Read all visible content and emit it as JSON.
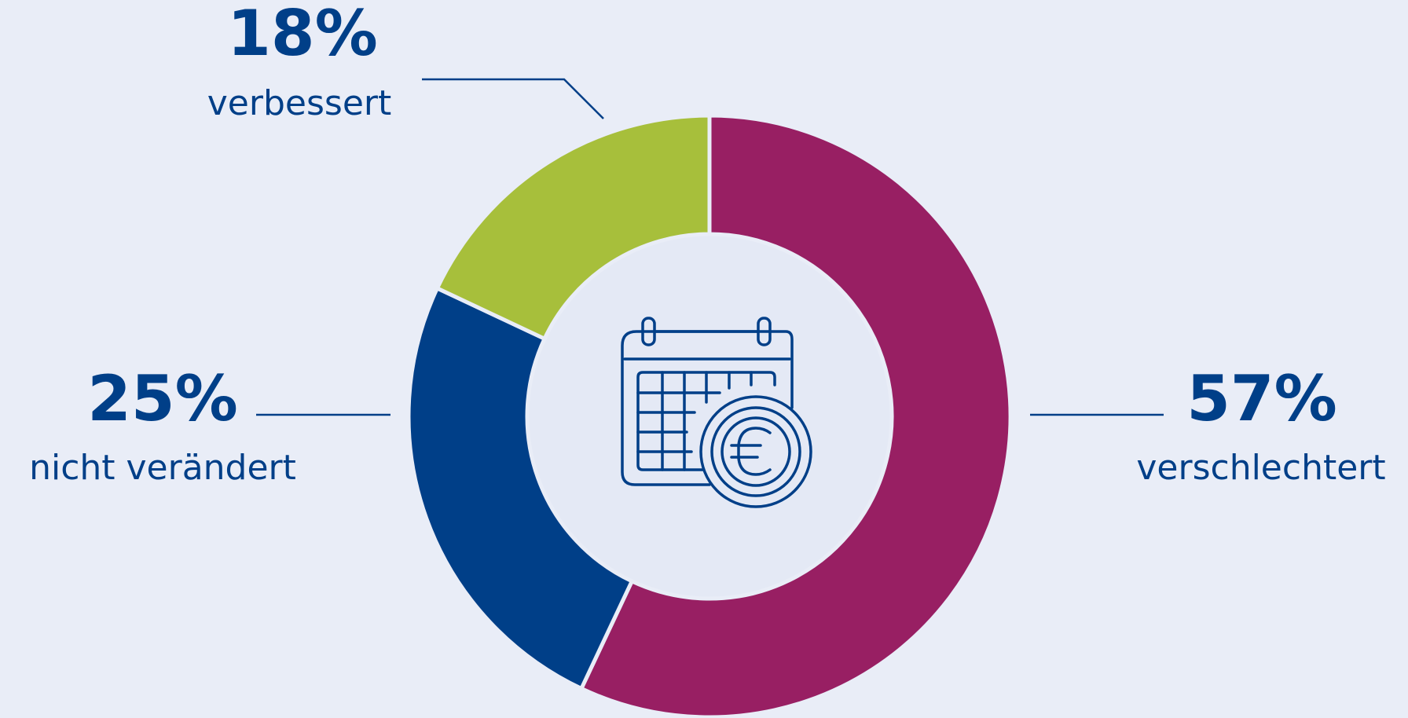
{
  "chart_data": {
    "type": "pie",
    "subtype": "donut",
    "unit": "%",
    "slices": [
      {
        "label": "verschlechtert",
        "value": 57,
        "value_label": "57%",
        "color": "#981f63"
      },
      {
        "label": "nicht verändert",
        "value": 25,
        "value_label": "25%",
        "color": "#003f88"
      },
      {
        "label": "verbessert",
        "value": 18,
        "value_label": "18%",
        "color": "#a7bf3b"
      }
    ],
    "start_angle_deg": 0,
    "direction": "clockwise",
    "legend": "none",
    "center_icon": "calendar-euro-icon"
  },
  "colors": {
    "background": "#e9edf7",
    "center_fill": "#e4e9f5",
    "text": "#003f88",
    "separator": "#e9edf7"
  }
}
